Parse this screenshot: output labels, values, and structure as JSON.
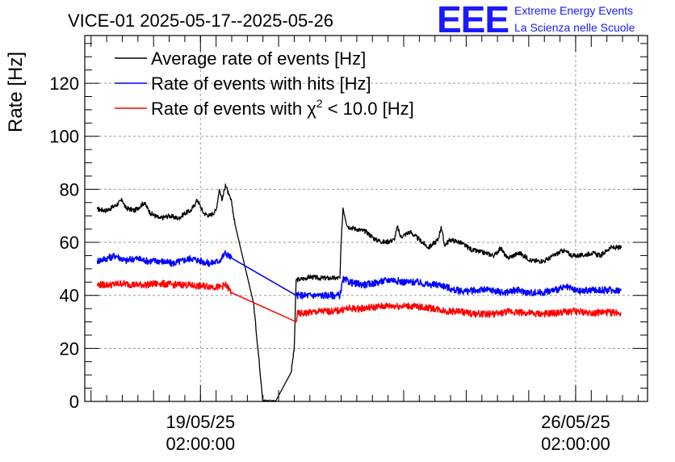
{
  "chart_data": {
    "type": "line",
    "title": "VICE-01 2025-05-17--2025-05-26",
    "ylabel": "Rate [Hz]",
    "xlabel": "",
    "ylim": [
      0,
      138
    ],
    "xlim_days": [
      0.0,
      9.0
    ],
    "yticks": [
      0,
      20,
      40,
      60,
      80,
      100,
      120
    ],
    "ytick_labels": [
      "0",
      "20",
      "40",
      "60",
      "80",
      "100",
      "120"
    ],
    "xticks": [
      {
        "day": 1.85,
        "line1": "19/05/25",
        "line2": "02:00:00"
      },
      {
        "day": 7.85,
        "line1": "26/05/25",
        "line2": "02:00:00"
      }
    ],
    "grid": true,
    "legend_position": "top-left",
    "series": [
      {
        "name": "Average rate of events [Hz]",
        "color": "#000000",
        "points": [
          [
            0.2,
            72.5
          ],
          [
            0.35,
            72
          ],
          [
            0.5,
            74
          ],
          [
            0.6,
            76
          ],
          [
            0.65,
            73
          ],
          [
            0.8,
            72
          ],
          [
            0.95,
            75
          ],
          [
            1.05,
            71
          ],
          [
            1.2,
            69
          ],
          [
            1.35,
            70
          ],
          [
            1.5,
            69
          ],
          [
            1.6,
            71
          ],
          [
            1.7,
            72
          ],
          [
            1.8,
            76
          ],
          [
            1.9,
            71
          ],
          [
            2.0,
            70
          ],
          [
            2.1,
            72
          ],
          [
            2.15,
            80
          ],
          [
            2.2,
            76
          ],
          [
            2.25,
            82
          ],
          [
            2.3,
            78
          ],
          [
            2.35,
            75
          ],
          [
            2.4,
            67
          ],
          [
            2.7,
            37
          ],
          [
            2.85,
            0
          ],
          [
            2.9,
            0
          ],
          [
            3.05,
            0
          ],
          [
            3.3,
            11
          ],
          [
            3.35,
            20
          ],
          [
            3.38,
            46
          ],
          [
            3.45,
            46
          ],
          [
            3.6,
            47
          ],
          [
            3.75,
            46.5
          ],
          [
            3.9,
            46.5
          ],
          [
            4.08,
            46.5
          ],
          [
            4.1,
            60
          ],
          [
            4.13,
            73
          ],
          [
            4.2,
            66
          ],
          [
            4.35,
            65
          ],
          [
            4.5,
            64
          ],
          [
            4.65,
            61
          ],
          [
            4.8,
            60
          ],
          [
            4.95,
            61
          ],
          [
            5.0,
            66
          ],
          [
            5.05,
            62
          ],
          [
            5.2,
            64
          ],
          [
            5.35,
            61
          ],
          [
            5.5,
            58
          ],
          [
            5.65,
            61
          ],
          [
            5.7,
            66
          ],
          [
            5.75,
            59
          ],
          [
            5.85,
            61
          ],
          [
            6.0,
            60
          ],
          [
            6.2,
            57
          ],
          [
            6.4,
            56
          ],
          [
            6.55,
            55
          ],
          [
            6.65,
            58
          ],
          [
            6.75,
            54
          ],
          [
            6.95,
            56
          ],
          [
            7.15,
            53
          ],
          [
            7.35,
            53
          ],
          [
            7.5,
            55
          ],
          [
            7.65,
            57
          ],
          [
            7.8,
            55
          ],
          [
            7.95,
            55
          ],
          [
            8.1,
            56
          ],
          [
            8.25,
            55
          ],
          [
            8.4,
            58
          ],
          [
            8.58,
            58
          ]
        ]
      },
      {
        "name": "Rate of events with hits [Hz]",
        "color": "#0000ff",
        "points": [
          [
            0.2,
            53
          ],
          [
            0.35,
            54
          ],
          [
            0.5,
            55
          ],
          [
            0.65,
            53
          ],
          [
            0.8,
            54
          ],
          [
            1.0,
            53
          ],
          [
            1.2,
            53
          ],
          [
            1.4,
            52
          ],
          [
            1.55,
            53
          ],
          [
            1.7,
            54
          ],
          [
            1.85,
            53
          ],
          [
            2.0,
            52
          ],
          [
            2.15,
            53
          ],
          [
            2.25,
            56
          ],
          [
            2.35,
            54
          ],
          [
            3.38,
            40
          ],
          [
            3.5,
            40
          ],
          [
            3.75,
            40
          ],
          [
            4.0,
            40
          ],
          [
            4.08,
            40
          ],
          [
            4.13,
            46
          ],
          [
            4.3,
            44.5
          ],
          [
            4.5,
            44
          ],
          [
            4.7,
            45
          ],
          [
            4.9,
            46
          ],
          [
            5.1,
            45
          ],
          [
            5.3,
            45
          ],
          [
            5.5,
            44
          ],
          [
            5.7,
            44
          ],
          [
            5.9,
            42
          ],
          [
            6.1,
            41.5
          ],
          [
            6.3,
            42
          ],
          [
            6.5,
            42
          ],
          [
            6.7,
            41
          ],
          [
            6.9,
            42
          ],
          [
            7.1,
            41
          ],
          [
            7.3,
            41
          ],
          [
            7.5,
            42
          ],
          [
            7.7,
            43
          ],
          [
            7.9,
            41.5
          ],
          [
            8.1,
            42
          ],
          [
            8.3,
            42
          ],
          [
            8.58,
            42
          ]
        ]
      },
      {
        "name": "Rate of events with χ² < 10.0 [Hz]",
        "color": "#ff0000",
        "points": [
          [
            0.2,
            44
          ],
          [
            0.4,
            44
          ],
          [
            0.6,
            44.5
          ],
          [
            0.8,
            44
          ],
          [
            1.0,
            44
          ],
          [
            1.2,
            44.5
          ],
          [
            1.4,
            44
          ],
          [
            1.6,
            44
          ],
          [
            1.8,
            43.5
          ],
          [
            2.0,
            43.5
          ],
          [
            2.15,
            43
          ],
          [
            2.25,
            44
          ],
          [
            2.35,
            41
          ],
          [
            3.38,
            30
          ],
          [
            3.4,
            33
          ],
          [
            3.6,
            33.5
          ],
          [
            3.8,
            34
          ],
          [
            4.0,
            34
          ],
          [
            4.2,
            35
          ],
          [
            4.4,
            35
          ],
          [
            4.6,
            35.5
          ],
          [
            4.8,
            36
          ],
          [
            5.0,
            36
          ],
          [
            5.2,
            36
          ],
          [
            5.4,
            35.5
          ],
          [
            5.6,
            35
          ],
          [
            5.8,
            34
          ],
          [
            6.0,
            34
          ],
          [
            6.2,
            33
          ],
          [
            6.4,
            33
          ],
          [
            6.6,
            33
          ],
          [
            6.8,
            34
          ],
          [
            7.0,
            33.5
          ],
          [
            7.2,
            33
          ],
          [
            7.4,
            33
          ],
          [
            7.6,
            33.5
          ],
          [
            7.8,
            34
          ],
          [
            8.0,
            33.5
          ],
          [
            8.2,
            33.5
          ],
          [
            8.4,
            33.5
          ],
          [
            8.58,
            33.5
          ]
        ]
      }
    ]
  },
  "legend": {
    "items": [
      {
        "label": "Average rate of events [Hz]",
        "color": "#000000"
      },
      {
        "label": "Rate of events with hits [Hz]",
        "color": "#0000ff"
      },
      {
        "label_prefix": "Rate of events with ",
        "label_symbol": "χ",
        "label_sup": "2",
        "label_suffix": " < 10.0 [Hz]",
        "color": "#ff0000"
      }
    ]
  },
  "logo": {
    "mark": "EEE",
    "line1": "Extreme Energy Events",
    "line2": "La Scienza nelle Scuole",
    "color": "#1a1aff"
  }
}
